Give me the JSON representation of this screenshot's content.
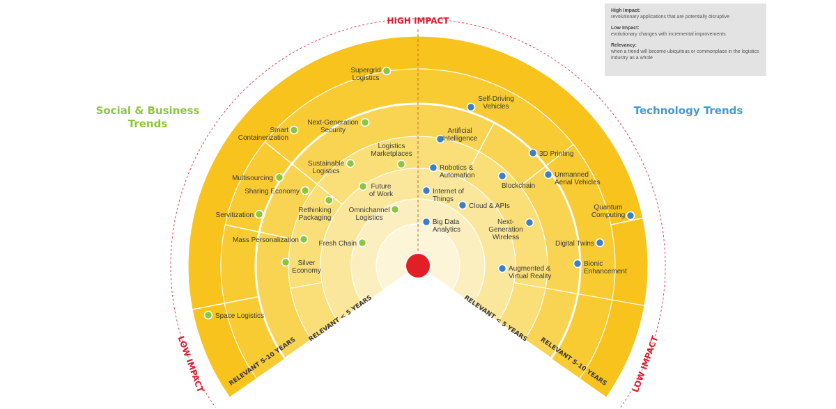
{
  "titles": {
    "social": "Social & Business Trends",
    "technology": "Technology Trends"
  },
  "legend": {
    "high_title": "High Impact:",
    "high_desc": "revolutionary applications that are potentially disruptive",
    "low_title": "Low Impact:",
    "low_desc": "evolutionary changes with incremental improvements",
    "rel_title": "Relevancy:",
    "rel_desc": "when a trend will become ubiquitous or commonplace in the logistics industry as a whole"
  },
  "labels": {
    "high_impact": "HIGH IMPACT",
    "low_impact": "LOW IMPACT",
    "relevant_5_10": "RELEVANT 5-10 YEARS",
    "relevant_lt5": "RELEVANT < 5 YEARS"
  },
  "colors": {
    "social_dot": "#8cc63f",
    "tech_dot": "#3d7fc4",
    "center": "#e31f26",
    "impact_text": "#d7202e",
    "ring_outer": "#f6c21a",
    "ring_inner": "#fdf3c4"
  },
  "social_trends": [
    {
      "label": "Supergrid Logistics",
      "lines": [
        "Supergrid",
        "Logistics"
      ]
    },
    {
      "label": "Next-Generation Security",
      "lines": [
        "Next-Generation",
        "Security"
      ]
    },
    {
      "label": "Smart Containerization",
      "lines": [
        "Smart",
        "Containerization"
      ]
    },
    {
      "label": "Logistics Marketplaces",
      "lines": [
        "Logistics",
        "Marketplaces"
      ]
    },
    {
      "label": "Sustainable Logistics",
      "lines": [
        "Sustainable",
        "Logistics"
      ]
    },
    {
      "label": "Multisourcing",
      "lines": [
        "Multisourcing"
      ]
    },
    {
      "label": "Sharing Economy",
      "lines": [
        "Sharing Economy"
      ]
    },
    {
      "label": "Future of Work",
      "lines": [
        "Future",
        "of Work"
      ]
    },
    {
      "label": "Rethinking Packaging",
      "lines": [
        "Rethinking",
        "Packaging"
      ]
    },
    {
      "label": "Omnichannel Logistics",
      "lines": [
        "Omnichannel",
        "Logistics"
      ]
    },
    {
      "label": "Servitization",
      "lines": [
        "Servitization"
      ]
    },
    {
      "label": "Mass Personalization",
      "lines": [
        "Mass Personalization"
      ]
    },
    {
      "label": "Fresh Chain",
      "lines": [
        "Fresh Chain"
      ]
    },
    {
      "label": "Silver Economy",
      "lines": [
        "Silver",
        "Economy"
      ]
    },
    {
      "label": "Space Logistics",
      "lines": [
        "Space Logistics"
      ]
    }
  ],
  "technology_trends": [
    {
      "label": "Self-Driving Vehicles",
      "lines": [
        "Self-Driving",
        "Vehicles"
      ]
    },
    {
      "label": "Artificial Intelligence",
      "lines": [
        "Artificial",
        "Intelligence"
      ]
    },
    {
      "label": "3D Printing",
      "lines": [
        "3D Printing"
      ]
    },
    {
      "label": "Robotics & Automation",
      "lines": [
        "Robotics &",
        "Automation"
      ]
    },
    {
      "label": "Unmanned Aerial Vehicles",
      "lines": [
        "Unmanned",
        "Aerial Vehicles"
      ]
    },
    {
      "label": "Blockchain",
      "lines": [
        "Blockchain"
      ]
    },
    {
      "label": "Internet of Things",
      "lines": [
        "Internet of",
        "Things"
      ]
    },
    {
      "label": "Cloud & APIs",
      "lines": [
        "Cloud & APIs"
      ]
    },
    {
      "label": "Quantum Computing",
      "lines": [
        "Quantum",
        "Computing"
      ]
    },
    {
      "label": "Big Data Analytics",
      "lines": [
        "Big Data",
        "Analytics"
      ]
    },
    {
      "label": "Next-Generation Wireless",
      "lines": [
        "Next-",
        "Generation",
        "Wireless"
      ]
    },
    {
      "label": "Digital Twins",
      "lines": [
        "Digital Twins"
      ]
    },
    {
      "label": "Bionic Enhancement",
      "lines": [
        "Bionic",
        "Enhancement"
      ]
    },
    {
      "label": "Augmented & Virtual Reality",
      "lines": [
        "Augmented &",
        "Virtual Reality"
      ]
    }
  ]
}
